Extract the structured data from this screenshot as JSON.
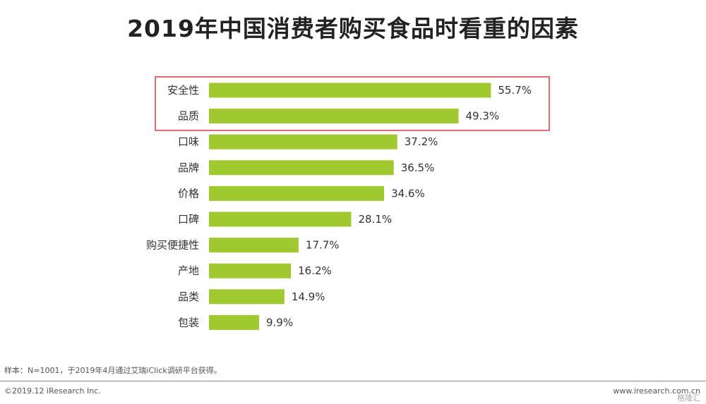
{
  "header": {
    "title": "2019年中国消费者购买食品时看重的因素"
  },
  "chart_data": {
    "type": "bar",
    "orientation": "horizontal",
    "title": "2019年中国消费者购买食品时看重的因素",
    "categories": [
      "安全性",
      "品质",
      "口味",
      "品牌",
      "价格",
      "口碑",
      "购买便捷性",
      "产地",
      "品类",
      "包装"
    ],
    "values": [
      55.7,
      49.3,
      37.2,
      36.5,
      34.6,
      28.1,
      17.7,
      16.2,
      14.9,
      9.9
    ],
    "value_labels": [
      "55.7%",
      "49.3%",
      "37.2%",
      "36.5%",
      "34.6%",
      "28.1%",
      "17.7%",
      "16.2%",
      "14.9%",
      "9.9%"
    ],
    "xlim": [
      0,
      60
    ],
    "grid": false,
    "bar_color": "#9fc92f",
    "highlighted_categories": [
      "安全性",
      "品质"
    ],
    "highlight_color": "#e36a73"
  },
  "footer": {
    "source": "样本：N=1001，于2019年4月通过艾瑞iClick调研平台获得。",
    "copyright": "©2019.12 iResearch Inc.",
    "website": "www.iresearch.com.cn",
    "watermark": "格隆汇"
  }
}
